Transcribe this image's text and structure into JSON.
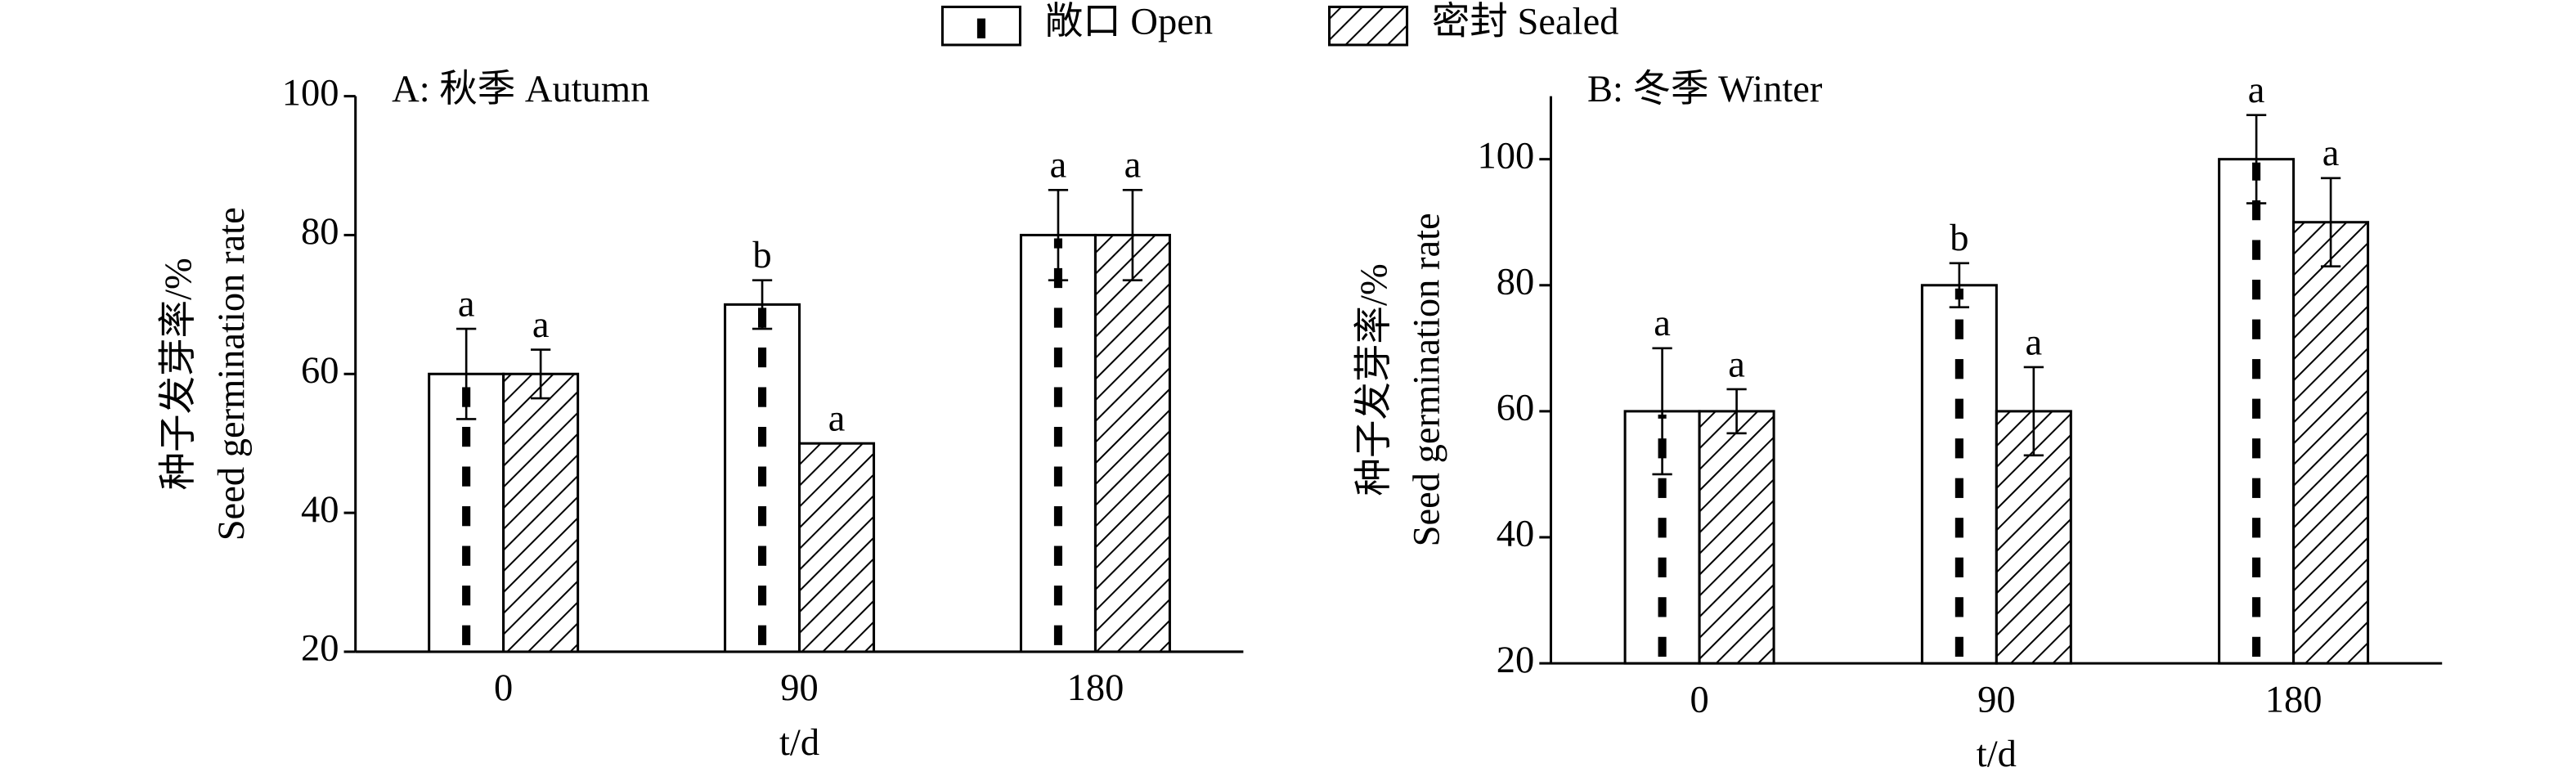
{
  "chart_data": [
    {
      "type": "bar",
      "title": "A: 秋季 Autumn",
      "ylabel": [
        "种子发芽率/%",
        "Seed germination rate"
      ],
      "xlabel": "t/d",
      "categories": [
        "0",
        "90",
        "180"
      ],
      "ylim": [
        20,
        100
      ],
      "yticks": [
        20,
        40,
        60,
        80,
        100
      ],
      "series": [
        {
          "name": "敞口 Open",
          "color": "#000000",
          "pattern": "dashes",
          "values": [
            60,
            70,
            80
          ],
          "errors": [
            6.5,
            3.5,
            6.5
          ],
          "letters": [
            "a",
            "b",
            "a"
          ]
        },
        {
          "name": "密封 Sealed",
          "color": "#000000",
          "pattern": "hatch",
          "values": [
            60,
            50,
            80
          ],
          "errors": [
            3.5,
            0,
            6.5
          ],
          "letters": [
            "a",
            "a",
            "a"
          ]
        }
      ]
    },
    {
      "type": "bar",
      "title": "B: 冬季 Winter",
      "ylabel": [
        "种子发芽率/%",
        "Seed germination rate"
      ],
      "xlabel": "t/d",
      "categories": [
        "0",
        "90",
        "180"
      ],
      "ylim": [
        20,
        110
      ],
      "yticks": [
        20,
        40,
        60,
        80,
        100
      ],
      "series": [
        {
          "name": "敞口 Open",
          "color": "#000000",
          "pattern": "dashes",
          "values": [
            60,
            80,
            100
          ],
          "errors": [
            10,
            3.5,
            7
          ],
          "letters": [
            "a",
            "b",
            "a"
          ]
        },
        {
          "name": "密封 Sealed",
          "color": "#000000",
          "pattern": "hatch",
          "values": [
            60,
            60,
            90
          ],
          "errors": [
            3.5,
            7,
            7
          ],
          "letters": [
            "a",
            "a",
            "a"
          ]
        }
      ]
    }
  ]
}
